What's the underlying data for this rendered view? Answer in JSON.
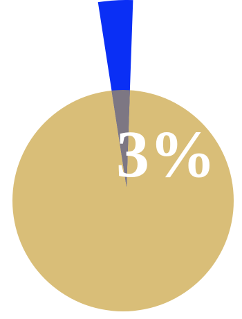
{
  "chart_data": {
    "type": "pie",
    "values": [
      3,
      97
    ],
    "labels": [
      "3%",
      ""
    ],
    "colors": [
      "#0a2ff5",
      "#d9be78"
    ],
    "highlight_overlap_color": "#7d7783",
    "label_color": "#ffffff"
  }
}
